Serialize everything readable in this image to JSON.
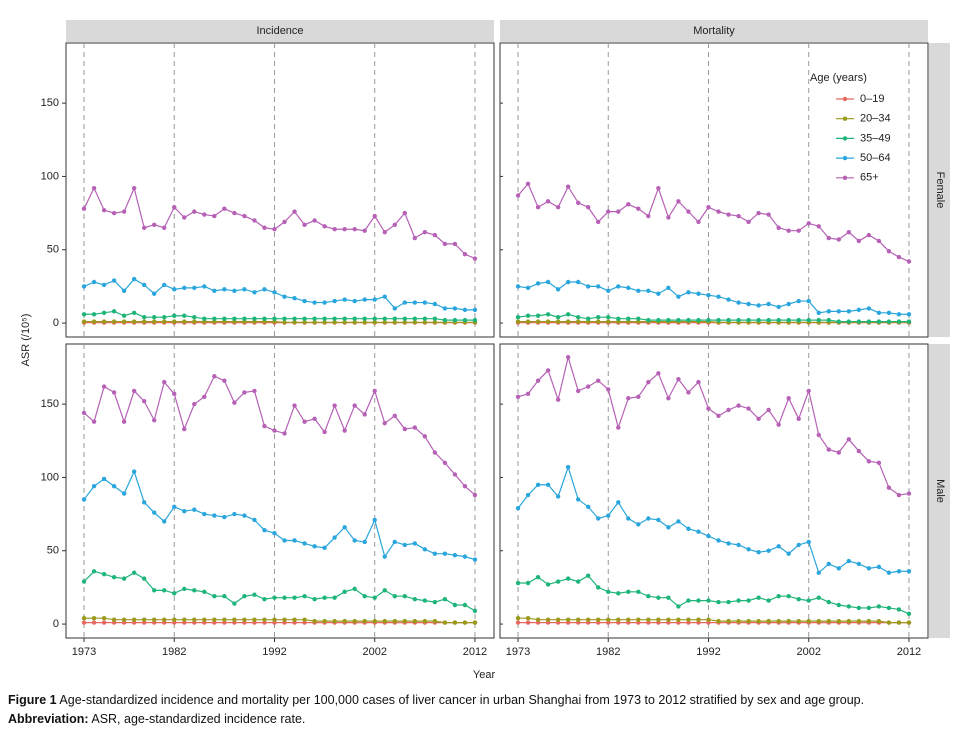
{
  "axis_titles": {
    "x": "Year",
    "y": "ASR (/10⁵)"
  },
  "caption": {
    "label": "Figure 1",
    "text": "Age-standardized incidence and mortality per 100,000 cases of liver cancer in urban Shanghai from 1973 to 2012 stratified by sex and age group."
  },
  "abbreviation": {
    "label": "Abbreviation:",
    "text": "ASR, age-standardized incidence rate."
  },
  "chart_data": [
    {
      "type": "line",
      "title": "Incidence",
      "x": [
        1973,
        1974,
        1975,
        1976,
        1977,
        1978,
        1979,
        1980,
        1981,
        1982,
        1983,
        1984,
        1985,
        1986,
        1987,
        1988,
        1989,
        1990,
        1991,
        1992,
        1993,
        1994,
        1995,
        1996,
        1997,
        1998,
        1999,
        2000,
        2001,
        2002,
        2003,
        2004,
        2005,
        2006,
        2007,
        2008,
        2009,
        2010,
        2011,
        2012
      ],
      "xlim": [
        1971.2,
        2013.9
      ],
      "xticks": [
        1973,
        1982,
        1992,
        2002,
        2012
      ],
      "ylim": [
        -9.5,
        191
      ],
      "yticks": [
        0,
        50,
        100,
        150
      ],
      "grid": true,
      "series": [
        {
          "color": "#e8685f",
          "values": [
            0.3,
            0.3,
            0.3,
            0.3,
            0.3,
            0.3,
            0.3,
            0.3,
            0.3,
            0.3,
            0.3,
            0.3,
            0.3,
            0.3,
            0.3,
            0.3,
            0.3,
            0.3,
            0.3,
            0.3,
            0.3,
            0.3,
            0.3,
            0.3,
            0.3,
            0.3,
            0.3,
            0.3,
            0.3,
            0.3,
            0.3,
            0.3,
            0.3,
            0.3,
            0.3,
            0.3,
            0.3,
            0.3,
            0.3,
            0.3
          ]
        },
        {
          "color": "#9a9a1a",
          "values": [
            1,
            1,
            1,
            1,
            1,
            1,
            1,
            1,
            1,
            1,
            1,
            1,
            1,
            1,
            1,
            1,
            1,
            1,
            1,
            1,
            0.5,
            0.5,
            0.5,
            0.5,
            0.5,
            0.5,
            0.5,
            0.5,
            0.5,
            0.5,
            0.5,
            0.5,
            0.5,
            0.5,
            0.5,
            0.5,
            0.5,
            0.5,
            0.5,
            0.5
          ]
        },
        {
          "color": "#1fb57a",
          "values": [
            6,
            6,
            7,
            8,
            5,
            7,
            4,
            4,
            4,
            5,
            5,
            4,
            3,
            3,
            3,
            3,
            3,
            3,
            3,
            3,
            3,
            3,
            3,
            3,
            3,
            3,
            3,
            3,
            3,
            3,
            3,
            3,
            3,
            3,
            3,
            3,
            2,
            2,
            2,
            2
          ]
        },
        {
          "color": "#2aa6dc",
          "values": [
            25,
            28,
            26,
            29,
            22,
            30,
            26,
            20,
            26,
            23,
            24,
            24,
            25,
            22,
            23,
            22,
            23,
            21,
            23,
            21,
            18,
            17,
            15,
            14,
            14,
            15,
            16,
            15,
            16,
            16,
            18,
            10,
            14,
            14,
            14,
            13,
            10,
            10,
            9,
            9
          ]
        },
        {
          "color": "#b661b6",
          "values": [
            78,
            92,
            77,
            75,
            76,
            92,
            65,
            67,
            65,
            79,
            72,
            76,
            74,
            73,
            78,
            75,
            73,
            70,
            65,
            64,
            69,
            76,
            67,
            70,
            66,
            64,
            64,
            64,
            63,
            73,
            62,
            67,
            75,
            58,
            62,
            60,
            54,
            54,
            47,
            44
          ]
        }
      ]
    },
    {
      "type": "line",
      "title": "Mortality",
      "row_label": "Female",
      "legend_title": "Age (years)",
      "legend": "upper right",
      "x": [
        1973,
        1974,
        1975,
        1976,
        1977,
        1978,
        1979,
        1980,
        1981,
        1982,
        1983,
        1984,
        1985,
        1986,
        1987,
        1988,
        1989,
        1990,
        1991,
        1992,
        1993,
        1994,
        1995,
        1996,
        1997,
        1998,
        1999,
        2000,
        2001,
        2002,
        2003,
        2004,
        2005,
        2006,
        2007,
        2008,
        2009,
        2010,
        2011,
        2012
      ],
      "xlim": [
        1971.2,
        2013.9
      ],
      "xticks": [
        1973,
        1982,
        1992,
        2002,
        2012
      ],
      "ylim": [
        -9.5,
        191
      ],
      "yticks": [
        0,
        50,
        100,
        150
      ],
      "grid": true,
      "series": [
        {
          "name": "0–19",
          "color": "#e8685f",
          "values": [
            0.3,
            0.3,
            0.3,
            0.3,
            0.3,
            0.3,
            0.3,
            0.3,
            0.3,
            0.3,
            0.3,
            0.3,
            0.3,
            0.3,
            0.3,
            0.3,
            0.3,
            0.3,
            0.3,
            0.3,
            0.3,
            0.3,
            0.3,
            0.3,
            0.3,
            0.3,
            0.3,
            0.3,
            0.3,
            0.3,
            0.3,
            0.3,
            0.3,
            0.3,
            0.3,
            0.3,
            0.3,
            0.3,
            0.3,
            0.3
          ]
        },
        {
          "name": "20–34",
          "color": "#9a9a1a",
          "values": [
            1,
            1,
            1,
            1,
            1,
            1,
            1,
            1,
            1,
            1,
            1,
            1,
            1,
            1,
            1,
            1,
            1,
            1,
            1,
            1,
            0.5,
            0.5,
            0.5,
            0.5,
            0.5,
            0.5,
            0.5,
            0.5,
            0.5,
            0.5,
            0.5,
            0.5,
            0.5,
            0.5,
            0.5,
            0.5,
            0.5,
            0.5,
            0.5,
            0.5
          ]
        },
        {
          "name": "35–49",
          "color": "#1fb57a",
          "values": [
            4,
            5,
            5,
            6,
            4,
            6,
            4,
            3,
            4,
            4,
            3,
            3,
            3,
            2,
            2,
            2,
            2,
            2,
            2,
            2,
            2,
            2,
            2,
            2,
            2,
            2,
            2,
            2,
            2,
            2,
            2,
            2,
            1,
            1,
            1,
            1,
            1,
            1,
            1,
            1
          ]
        },
        {
          "name": "50–64",
          "color": "#2aa6dc",
          "values": [
            25,
            24,
            27,
            28,
            23,
            28,
            28,
            25,
            25,
            22,
            25,
            24,
            22,
            22,
            20,
            24,
            18,
            21,
            20,
            19,
            18,
            16,
            14,
            13,
            12,
            13,
            11,
            13,
            15,
            15,
            7,
            8,
            8,
            8,
            9,
            10,
            7,
            7,
            6,
            6
          ]
        },
        {
          "name": "65+",
          "color": "#b661b6",
          "values": [
            87,
            95,
            79,
            83,
            79,
            93,
            82,
            79,
            69,
            76,
            76,
            81,
            78,
            73,
            92,
            72,
            83,
            76,
            69,
            79,
            76,
            74,
            73,
            69,
            75,
            74,
            65,
            63,
            63,
            68,
            66,
            58,
            57,
            62,
            56,
            60,
            56,
            49,
            45,
            42
          ]
        }
      ]
    },
    {
      "type": "line",
      "x": [
        1973,
        1974,
        1975,
        1976,
        1977,
        1978,
        1979,
        1980,
        1981,
        1982,
        1983,
        1984,
        1985,
        1986,
        1987,
        1988,
        1989,
        1990,
        1991,
        1992,
        1993,
        1994,
        1995,
        1996,
        1997,
        1998,
        1999,
        2000,
        2001,
        2002,
        2003,
        2004,
        2005,
        2006,
        2007,
        2008,
        2009,
        2010,
        2011,
        2012
      ],
      "xlim": [
        1971.2,
        2013.9
      ],
      "xticks": [
        1973,
        1982,
        1992,
        2002,
        2012
      ],
      "ylim": [
        -9.5,
        191
      ],
      "yticks": [
        0,
        50,
        100,
        150
      ],
      "grid": true,
      "series": [
        {
          "color": "#e8685f",
          "values": [
            1,
            1,
            1,
            1,
            1,
            1,
            1,
            1,
            1,
            1,
            1,
            1,
            1,
            1,
            1,
            1,
            1,
            1,
            1,
            1,
            1,
            1,
            1,
            1,
            1,
            1,
            1,
            1,
            1,
            1,
            1,
            1,
            1,
            1,
            1,
            1,
            1,
            1,
            1,
            1
          ]
        },
        {
          "color": "#9a9a1a",
          "values": [
            4,
            4,
            4,
            3,
            3,
            3,
            3,
            3,
            3,
            3,
            3,
            3,
            3,
            3,
            3,
            3,
            3,
            3,
            3,
            3,
            3,
            3,
            3,
            2,
            2,
            2,
            2,
            2,
            2,
            2,
            2,
            2,
            2,
            2,
            2,
            2,
            1,
            1,
            1,
            1
          ]
        },
        {
          "color": "#1fb57a",
          "values": [
            29,
            36,
            34,
            32,
            31,
            35,
            31,
            23,
            23,
            21,
            24,
            23,
            22,
            19,
            19,
            14,
            19,
            20,
            17,
            18,
            18,
            18,
            19,
            17,
            18,
            18,
            22,
            24,
            19,
            18,
            23,
            19,
            19,
            17,
            16,
            15,
            17,
            13,
            13,
            9
          ]
        },
        {
          "color": "#2aa6dc",
          "values": [
            85,
            94,
            99,
            94,
            89,
            104,
            83,
            76,
            70,
            80,
            77,
            78,
            75,
            74,
            73,
            75,
            74,
            71,
            64,
            62,
            57,
            57,
            55,
            53,
            52,
            59,
            66,
            57,
            56,
            71,
            46,
            56,
            54,
            55,
            51,
            48,
            48,
            47,
            46,
            44
          ]
        },
        {
          "color": "#b661b6",
          "values": [
            144,
            138,
            162,
            158,
            138,
            159,
            152,
            139,
            165,
            157,
            133,
            150,
            155,
            169,
            166,
            151,
            158,
            159,
            135,
            132,
            130,
            149,
            138,
            140,
            131,
            149,
            132,
            149,
            143,
            159,
            137,
            142,
            133,
            134,
            128,
            117,
            110,
            102,
            94,
            88
          ]
        }
      ]
    },
    {
      "type": "line",
      "row_label": "Male",
      "x": [
        1973,
        1974,
        1975,
        1976,
        1977,
        1978,
        1979,
        1980,
        1981,
        1982,
        1983,
        1984,
        1985,
        1986,
        1987,
        1988,
        1989,
        1990,
        1991,
        1992,
        1993,
        1994,
        1995,
        1996,
        1997,
        1998,
        1999,
        2000,
        2001,
        2002,
        2003,
        2004,
        2005,
        2006,
        2007,
        2008,
        2009,
        2010,
        2011,
        2012
      ],
      "xlim": [
        1971.2,
        2013.9
      ],
      "xticks": [
        1973,
        1982,
        1992,
        2002,
        2012
      ],
      "ylim": [
        -9.5,
        191
      ],
      "yticks": [
        0,
        50,
        100,
        150
      ],
      "grid": true,
      "series": [
        {
          "color": "#e8685f",
          "values": [
            1,
            1,
            1,
            1,
            1,
            1,
            1,
            1,
            1,
            1,
            1,
            1,
            1,
            1,
            1,
            1,
            1,
            1,
            1,
            1,
            1,
            1,
            1,
            1,
            1,
            1,
            1,
            1,
            1,
            1,
            1,
            1,
            1,
            1,
            1,
            1,
            1,
            1,
            1,
            1
          ]
        },
        {
          "color": "#9a9a1a",
          "values": [
            4,
            4,
            3,
            3,
            3,
            3,
            3,
            3,
            3,
            3,
            3,
            3,
            3,
            3,
            3,
            3,
            3,
            3,
            3,
            3,
            2,
            2,
            2,
            2,
            2,
            2,
            2,
            2,
            2,
            2,
            2,
            2,
            2,
            2,
            2,
            2,
            2,
            1,
            1,
            1
          ]
        },
        {
          "color": "#1fb57a",
          "values": [
            28,
            28,
            32,
            27,
            29,
            31,
            29,
            33,
            25,
            22,
            21,
            22,
            22,
            19,
            18,
            18,
            12,
            16,
            16,
            16,
            15,
            15,
            16,
            16,
            18,
            16,
            19,
            19,
            17,
            16,
            18,
            15,
            13,
            12,
            11,
            11,
            12,
            11,
            10,
            7
          ]
        },
        {
          "color": "#2aa6dc",
          "values": [
            79,
            88,
            95,
            95,
            87,
            107,
            85,
            80,
            72,
            74,
            83,
            72,
            68,
            72,
            71,
            66,
            70,
            65,
            63,
            60,
            57,
            55,
            54,
            51,
            49,
            50,
            53,
            48,
            54,
            56,
            35,
            41,
            38,
            43,
            41,
            38,
            39,
            35,
            36,
            36
          ]
        },
        {
          "color": "#b661b6",
          "values": [
            155,
            157,
            166,
            173,
            153,
            182,
            159,
            162,
            166,
            160,
            134,
            154,
            155,
            165,
            171,
            154,
            167,
            158,
            165,
            147,
            142,
            146,
            149,
            147,
            140,
            146,
            136,
            154,
            140,
            159,
            129,
            119,
            117,
            126,
            118,
            111,
            110,
            93,
            88,
            89
          ]
        }
      ]
    }
  ]
}
